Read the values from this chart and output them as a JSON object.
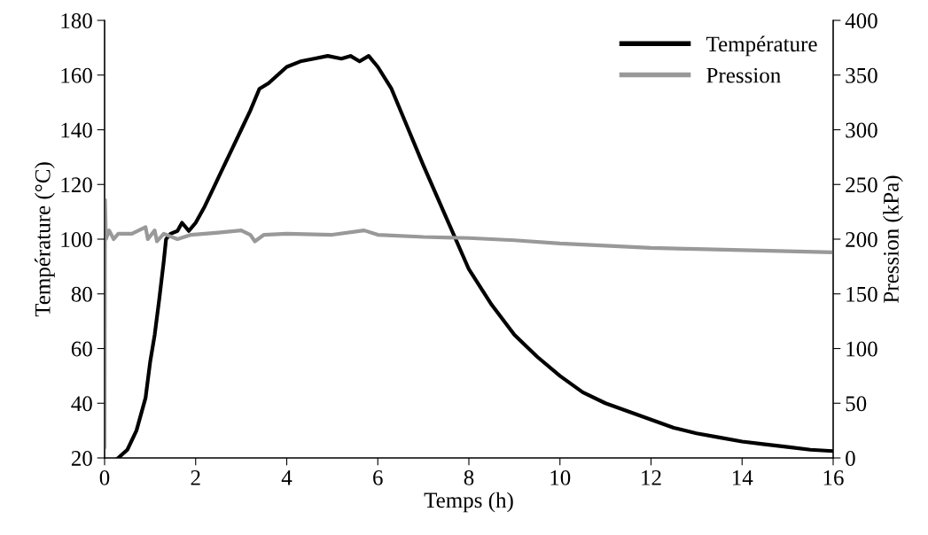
{
  "chart_data": {
    "type": "line",
    "xlabel": "Temps (h)",
    "ylabel": "Température (°C)",
    "y2label": "Pression (kPa)",
    "xlim": [
      0,
      16
    ],
    "xticks": [
      0,
      2,
      4,
      6,
      8,
      10,
      12,
      14,
      16
    ],
    "ylim": [
      20,
      180
    ],
    "yticks": [
      20,
      40,
      60,
      80,
      100,
      120,
      140,
      160,
      180
    ],
    "y2lim": [
      0,
      400
    ],
    "y2ticks": [
      0,
      50,
      100,
      150,
      200,
      250,
      300,
      350,
      400
    ],
    "grid": false,
    "legend": "top right",
    "marker": "none",
    "line_style": "solid",
    "series": [
      {
        "name": "Température",
        "color": "#000000",
        "x": [
          0.3,
          0.5,
          0.7,
          0.9,
          1.0,
          1.1,
          1.2,
          1.3,
          1.35,
          1.45,
          1.6,
          1.7,
          1.85,
          2.0,
          2.2,
          2.4,
          2.6,
          2.8,
          3.0,
          3.2,
          3.4,
          3.6,
          3.8,
          4.0,
          4.3,
          4.6,
          4.9,
          5.2,
          5.4,
          5.6,
          5.8,
          6.0,
          6.3,
          6.6,
          7.0,
          7.5,
          8.0,
          8.5,
          9.0,
          9.5,
          10.0,
          10.5,
          11.0,
          11.5,
          12.0,
          12.5,
          13.0,
          13.5,
          14.0,
          14.5,
          15.0,
          15.5,
          16.0
        ],
        "values": [
          20,
          23,
          30,
          42,
          55,
          65,
          78,
          92,
          100,
          102,
          103,
          106,
          103,
          106,
          112,
          119,
          126,
          133,
          140,
          147,
          155,
          157,
          160,
          163,
          165,
          166,
          167,
          166,
          167,
          165,
          167,
          163,
          155,
          143,
          127,
          108,
          89,
          76,
          65,
          57,
          50,
          44,
          40,
          37,
          34,
          31,
          29,
          27.5,
          26,
          25,
          24,
          23,
          22.5
        ]
      },
      {
        "name": "Pression",
        "color": "#999999",
        "axis": "y2",
        "x": [
          0,
          0.01,
          0.03,
          0.1,
          0.2,
          0.3,
          0.6,
          0.9,
          0.95,
          1.1,
          1.15,
          1.3,
          1.6,
          1.9,
          2.5,
          3.0,
          3.2,
          3.3,
          3.5,
          4.0,
          5.0,
          5.7,
          6.0,
          7.0,
          8.0,
          9.0,
          10.0,
          11.0,
          12.0,
          13.0,
          14.0,
          15.0,
          16.0
        ],
        "values": [
          10,
          236,
          200,
          208,
          200,
          205,
          205,
          211,
          200,
          208,
          198,
          205,
          200,
          204,
          206,
          208,
          204,
          198,
          204,
          205,
          204,
          208,
          204,
          202,
          201,
          199,
          196,
          194,
          192,
          191,
          190,
          189,
          188
        ]
      }
    ]
  }
}
